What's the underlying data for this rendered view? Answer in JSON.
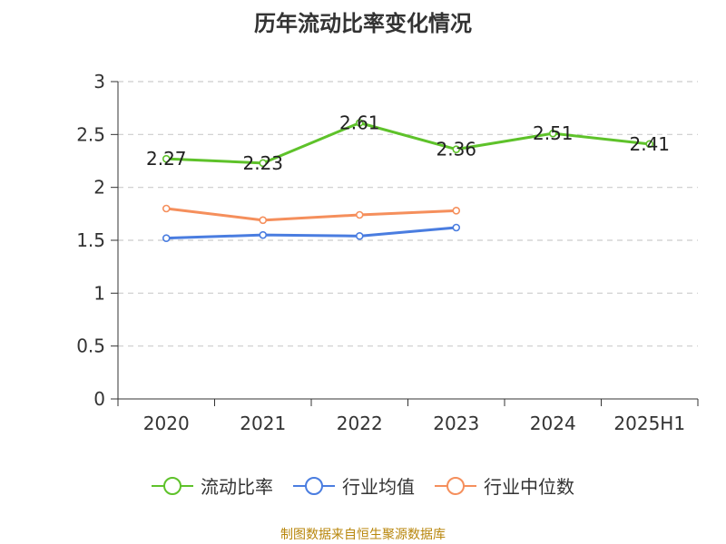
{
  "title": "历年流动比率变化情况",
  "source": "制图数据来自恒生聚源数据库",
  "chart_data": {
    "type": "line",
    "categories": [
      "2020",
      "2021",
      "2022",
      "2023",
      "2024",
      "2025H1"
    ],
    "ylim": [
      0,
      3
    ],
    "yticks": [
      0,
      0.5,
      1,
      1.5,
      2,
      2.5,
      3
    ],
    "ytick_labels": [
      "0",
      "0.5",
      "1",
      "1.5",
      "2",
      "2.5",
      "3"
    ],
    "grid": true,
    "legend_position": "bottom",
    "series": [
      {
        "name": "流动比率",
        "color": "#5ec22a",
        "values": [
          2.27,
          2.23,
          2.61,
          2.36,
          2.51,
          2.41
        ],
        "labels": [
          "2.27",
          "2.23",
          "2.61",
          "2.36",
          "2.51",
          "2.41"
        ],
        "show_labels": true
      },
      {
        "name": "行业均值",
        "color": "#4a7de0",
        "values": [
          1.52,
          1.55,
          1.54,
          1.62,
          null,
          null
        ],
        "show_labels": false
      },
      {
        "name": "行业中位数",
        "color": "#f58f5c",
        "values": [
          1.8,
          1.69,
          1.74,
          1.78,
          null,
          null
        ],
        "show_labels": false
      }
    ]
  }
}
